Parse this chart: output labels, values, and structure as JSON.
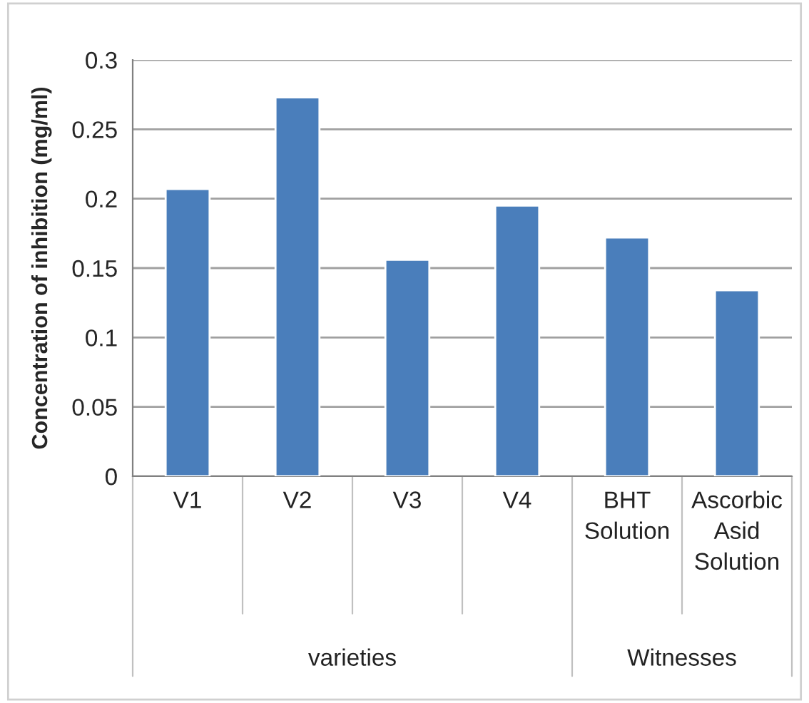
{
  "chart_data": {
    "type": "bar",
    "categories": [
      "V1",
      "V2",
      "V3",
      "V4",
      "BHT Solution",
      "Ascorbic Asid Solution"
    ],
    "values": [
      0.207,
      0.273,
      0.156,
      0.195,
      0.172,
      0.134
    ],
    "color": "#4a7ebb",
    "ylabel": "Concentration of inhibition (mg/ml)",
    "ylim": [
      0,
      0.3
    ],
    "yticks": [
      0,
      0.05,
      0.1,
      0.15,
      0.2,
      0.25,
      0.3
    ],
    "grid": "y",
    "annotations": [
      "varieties",
      "Witnesses"
    ]
  }
}
